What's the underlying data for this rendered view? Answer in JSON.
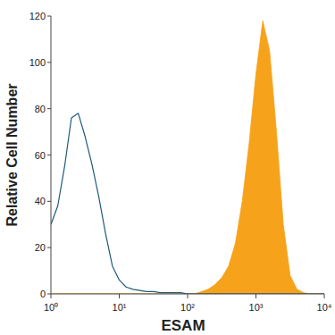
{
  "chart_data": {
    "type": "line",
    "x_label": "ESAM",
    "y_label": "Relative Cell Number",
    "log": "x",
    "x": [
      1,
      1.259,
      1.585,
      1.995,
      2.512,
      3.162,
      3.981,
      5.012,
      6.31,
      7.943,
      10,
      12.59,
      15.85,
      19.95,
      25.12,
      31.62,
      39.81,
      50.12,
      63.1,
      79.43,
      100,
      125.9,
      158.5,
      199.5,
      251.2,
      316.2,
      398.1,
      501.2,
      631,
      794.3,
      1000,
      1259,
      1585,
      1995,
      2512,
      3162,
      3981,
      5012,
      6310,
      7943,
      10000
    ],
    "series": [
      {
        "type": "line",
        "color": "#1f5a7a",
        "values": [
          30,
          38,
          55,
          76,
          78,
          68,
          56,
          42,
          26,
          12,
          6,
          3,
          2,
          1.5,
          1,
          1,
          0.5,
          0.5,
          0.5,
          0.5,
          0,
          0,
          0,
          0,
          0,
          0,
          0,
          0,
          0,
          0,
          0,
          0,
          0,
          0,
          0,
          0,
          0,
          0,
          0,
          0,
          0
        ]
      },
      {
        "type": "area",
        "color": "#f7a21b",
        "values": [
          0,
          0,
          0,
          0,
          0,
          0,
          0,
          0,
          0,
          0,
          0,
          0,
          0,
          0,
          0,
          0,
          0,
          0,
          0,
          0,
          0,
          0,
          1,
          2,
          4,
          7,
          12,
          22,
          40,
          65,
          95,
          118,
          105,
          70,
          30,
          8,
          2,
          0.5,
          0,
          0,
          0
        ]
      }
    ],
    "xlim": [
      1,
      10000
    ],
    "xticks": [
      {
        "value": 1,
        "label": "10⁰"
      },
      {
        "value": 10,
        "label": "10¹"
      },
      {
        "value": 100,
        "label": "10²"
      },
      {
        "value": 1000,
        "label": "10³"
      },
      {
        "value": 10000,
        "label": "10⁴"
      }
    ],
    "ylim": [
      0,
      120
    ],
    "yticks": [
      0,
      20,
      40,
      60,
      80,
      100,
      120
    ],
    "grid": false
  }
}
